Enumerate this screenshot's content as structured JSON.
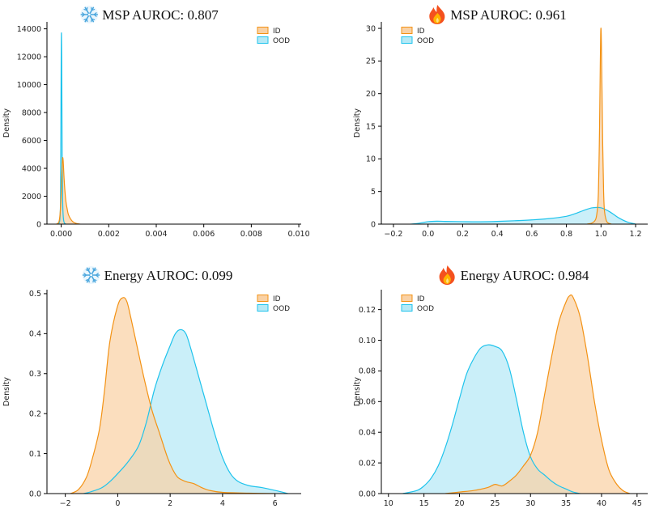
{
  "colors": {
    "id_fill": "#f9d1a5",
    "id_line": "#f39214",
    "ood_fill": "#b5e9f6",
    "ood_line": "#1ec3ec",
    "overlap": "#a8c3a3",
    "axis": "#000000"
  },
  "chart_data": [
    {
      "type": "area",
      "title": "MSP AUROC: 0.807",
      "title_icon": "snowflake",
      "xlabel": "",
      "ylabel": "Density",
      "xlim": [
        -0.0006,
        0.0101
      ],
      "ylim": [
        0,
        14500
      ],
      "xticks": [
        0.0,
        0.002,
        0.004,
        0.006,
        0.008,
        0.01
      ],
      "xtick_labels": [
        "0.000",
        "0.002",
        "0.004",
        "0.006",
        "0.008",
        "0.010"
      ],
      "yticks": [
        0,
        2000,
        4000,
        6000,
        8000,
        10000,
        12000,
        14000
      ],
      "ytick_labels": [
        "0",
        "2000",
        "4000",
        "6000",
        "8000",
        "10000",
        "12000",
        "14000"
      ],
      "legend": [
        "ID",
        "OOD"
      ],
      "legend_position": "top-right",
      "series": [
        {
          "name": "ID",
          "x": [
            -0.0002,
            -0.0001,
            -5e-05,
            0.0,
            2e-05,
            4e-05,
            6e-05,
            8e-05,
            0.0001,
            0.00012,
            0.00016,
            0.0002,
            0.00025,
            0.0003,
            0.0004,
            0.0005,
            0.0006,
            0.0007,
            0.0008
          ],
          "y": [
            0,
            150,
            700,
            2200,
            3300,
            4200,
            4750,
            4600,
            4000,
            3300,
            2300,
            1600,
            1100,
            700,
            350,
            160,
            70,
            25,
            0
          ]
        },
        {
          "name": "OOD",
          "x": [
            -0.00012,
            -6e-05,
            -3e-05,
            -1e-05,
            0.0,
            1e-05,
            2e-05,
            3e-05,
            4e-05,
            6e-05,
            8e-05,
            0.00011,
            0.00015,
            0.0002
          ],
          "y": [
            0,
            300,
            1800,
            8500,
            12500,
            13700,
            12000,
            8500,
            5000,
            1800,
            700,
            200,
            50,
            0
          ]
        }
      ]
    },
    {
      "type": "area",
      "title": "MSP AUROC: 0.961",
      "title_icon": "fire",
      "xlabel": "",
      "ylabel": "Density",
      "xlim": [
        -0.27,
        1.27
      ],
      "ylim": [
        0,
        31
      ],
      "xticks": [
        -0.2,
        0.0,
        0.2,
        0.4,
        0.6,
        0.8,
        1.0,
        1.2
      ],
      "xtick_labels": [
        "−0.2",
        "0.0",
        "0.2",
        "0.4",
        "0.6",
        "0.8",
        "1.0",
        "1.2"
      ],
      "yticks": [
        0,
        5,
        10,
        15,
        20,
        25,
        30
      ],
      "ytick_labels": [
        "0",
        "5",
        "10",
        "15",
        "20",
        "25",
        "30"
      ],
      "legend": [
        "ID",
        "OOD"
      ],
      "legend_position": "top-left",
      "series": [
        {
          "name": "ID",
          "x": [
            0.92,
            0.95,
            0.97,
            0.98,
            0.985,
            0.99,
            0.993,
            0.996,
            0.998,
            1.0,
            1.002,
            1.005,
            1.01,
            1.015,
            1.02,
            1.03,
            1.04,
            1.06
          ],
          "y": [
            0,
            0.2,
            0.8,
            2.5,
            5,
            12,
            18,
            25,
            29,
            30,
            28,
            22,
            12,
            5,
            2,
            0.6,
            0.2,
            0
          ]
        },
        {
          "name": "OOD",
          "x": [
            -0.1,
            -0.05,
            0.0,
            0.05,
            0.1,
            0.2,
            0.3,
            0.4,
            0.5,
            0.6,
            0.7,
            0.8,
            0.85,
            0.9,
            0.95,
            1.0,
            1.05,
            1.1,
            1.15,
            1.2
          ],
          "y": [
            0,
            0.15,
            0.38,
            0.45,
            0.42,
            0.38,
            0.36,
            0.42,
            0.52,
            0.65,
            0.85,
            1.2,
            1.6,
            2.1,
            2.5,
            2.5,
            1.9,
            1.0,
            0.35,
            0
          ]
        }
      ]
    },
    {
      "type": "area",
      "title": "Energy AUROC: 0.099",
      "title_icon": "snowflake",
      "xlabel": "",
      "ylabel": "Density",
      "xlim": [
        -2.7,
        7.0
      ],
      "ylim": [
        0,
        0.51
      ],
      "xticks": [
        -2,
        0,
        2,
        4,
        6
      ],
      "xtick_labels": [
        "−2",
        "0",
        "2",
        "4",
        "6"
      ],
      "yticks": [
        0.0,
        0.1,
        0.2,
        0.3,
        0.4,
        0.5
      ],
      "ytick_labels": [
        "0.0",
        "0.1",
        "0.2",
        "0.3",
        "0.4",
        "0.5"
      ],
      "legend": [
        "ID",
        "OOD"
      ],
      "legend_position": "top-right",
      "series": [
        {
          "name": "ID",
          "x": [
            -1.8,
            -1.5,
            -1.2,
            -1.0,
            -0.7,
            -0.5,
            -0.3,
            0.0,
            0.2,
            0.35,
            0.5,
            0.7,
            1.0,
            1.3,
            1.6,
            1.9,
            2.1,
            2.3,
            2.6,
            2.9,
            3.2,
            3.5,
            4.0,
            5.0,
            6.0
          ],
          "y": [
            0,
            0.01,
            0.04,
            0.08,
            0.16,
            0.26,
            0.38,
            0.47,
            0.49,
            0.48,
            0.44,
            0.38,
            0.29,
            0.21,
            0.15,
            0.09,
            0.06,
            0.04,
            0.03,
            0.025,
            0.015,
            0.008,
            0.003,
            0.001,
            0
          ]
        },
        {
          "name": "OOD",
          "x": [
            -1.3,
            -1.0,
            -0.6,
            -0.3,
            0.0,
            0.4,
            0.8,
            1.1,
            1.4,
            1.7,
            2.0,
            2.2,
            2.4,
            2.6,
            2.8,
            3.1,
            3.4,
            3.7,
            4.0,
            4.3,
            4.6,
            5.0,
            5.5,
            6.0,
            6.5
          ],
          "y": [
            0,
            0.005,
            0.015,
            0.03,
            0.05,
            0.08,
            0.12,
            0.18,
            0.26,
            0.32,
            0.37,
            0.4,
            0.41,
            0.4,
            0.36,
            0.29,
            0.22,
            0.15,
            0.09,
            0.05,
            0.03,
            0.02,
            0.015,
            0.008,
            0
          ]
        }
      ]
    },
    {
      "type": "area",
      "title": "Energy AUROC: 0.984",
      "title_icon": "fire",
      "xlabel": "",
      "ylabel": "Density",
      "xlim": [
        9.0,
        46.5
      ],
      "ylim": [
        0,
        0.133
      ],
      "xticks": [
        10,
        15,
        20,
        25,
        30,
        35,
        40,
        45
      ],
      "xtick_labels": [
        "10",
        "15",
        "20",
        "25",
        "30",
        "35",
        "40",
        "45"
      ],
      "yticks": [
        0.0,
        0.02,
        0.04,
        0.06,
        0.08,
        0.1,
        0.12
      ],
      "ytick_labels": [
        "0.00",
        "0.02",
        "0.04",
        "0.06",
        "0.08",
        "0.10",
        "0.12"
      ],
      "legend": [
        "ID",
        "OOD"
      ],
      "legend_position": "top-left",
      "series": [
        {
          "name": "ID",
          "x": [
            18,
            20,
            22,
            24,
            25,
            26,
            27,
            28,
            29,
            30,
            31,
            32,
            33,
            34,
            35,
            35.5,
            36,
            37,
            38,
            39,
            40,
            41,
            42,
            43,
            44
          ],
          "y": [
            0,
            0.001,
            0.002,
            0.004,
            0.006,
            0.005,
            0.008,
            0.012,
            0.018,
            0.025,
            0.04,
            0.065,
            0.09,
            0.112,
            0.125,
            0.129,
            0.128,
            0.115,
            0.09,
            0.06,
            0.035,
            0.016,
            0.007,
            0.002,
            0
          ]
        },
        {
          "name": "OOD",
          "x": [
            12,
            14,
            15,
            16,
            17,
            18,
            19,
            20,
            21,
            22,
            23,
            24,
            25,
            26,
            27,
            28,
            29,
            30,
            31,
            32,
            33,
            34,
            35,
            36,
            37
          ],
          "y": [
            0,
            0.002,
            0.005,
            0.01,
            0.018,
            0.03,
            0.045,
            0.062,
            0.078,
            0.088,
            0.095,
            0.097,
            0.096,
            0.093,
            0.082,
            0.062,
            0.04,
            0.024,
            0.016,
            0.012,
            0.008,
            0.005,
            0.003,
            0.001,
            0
          ]
        }
      ]
    }
  ]
}
